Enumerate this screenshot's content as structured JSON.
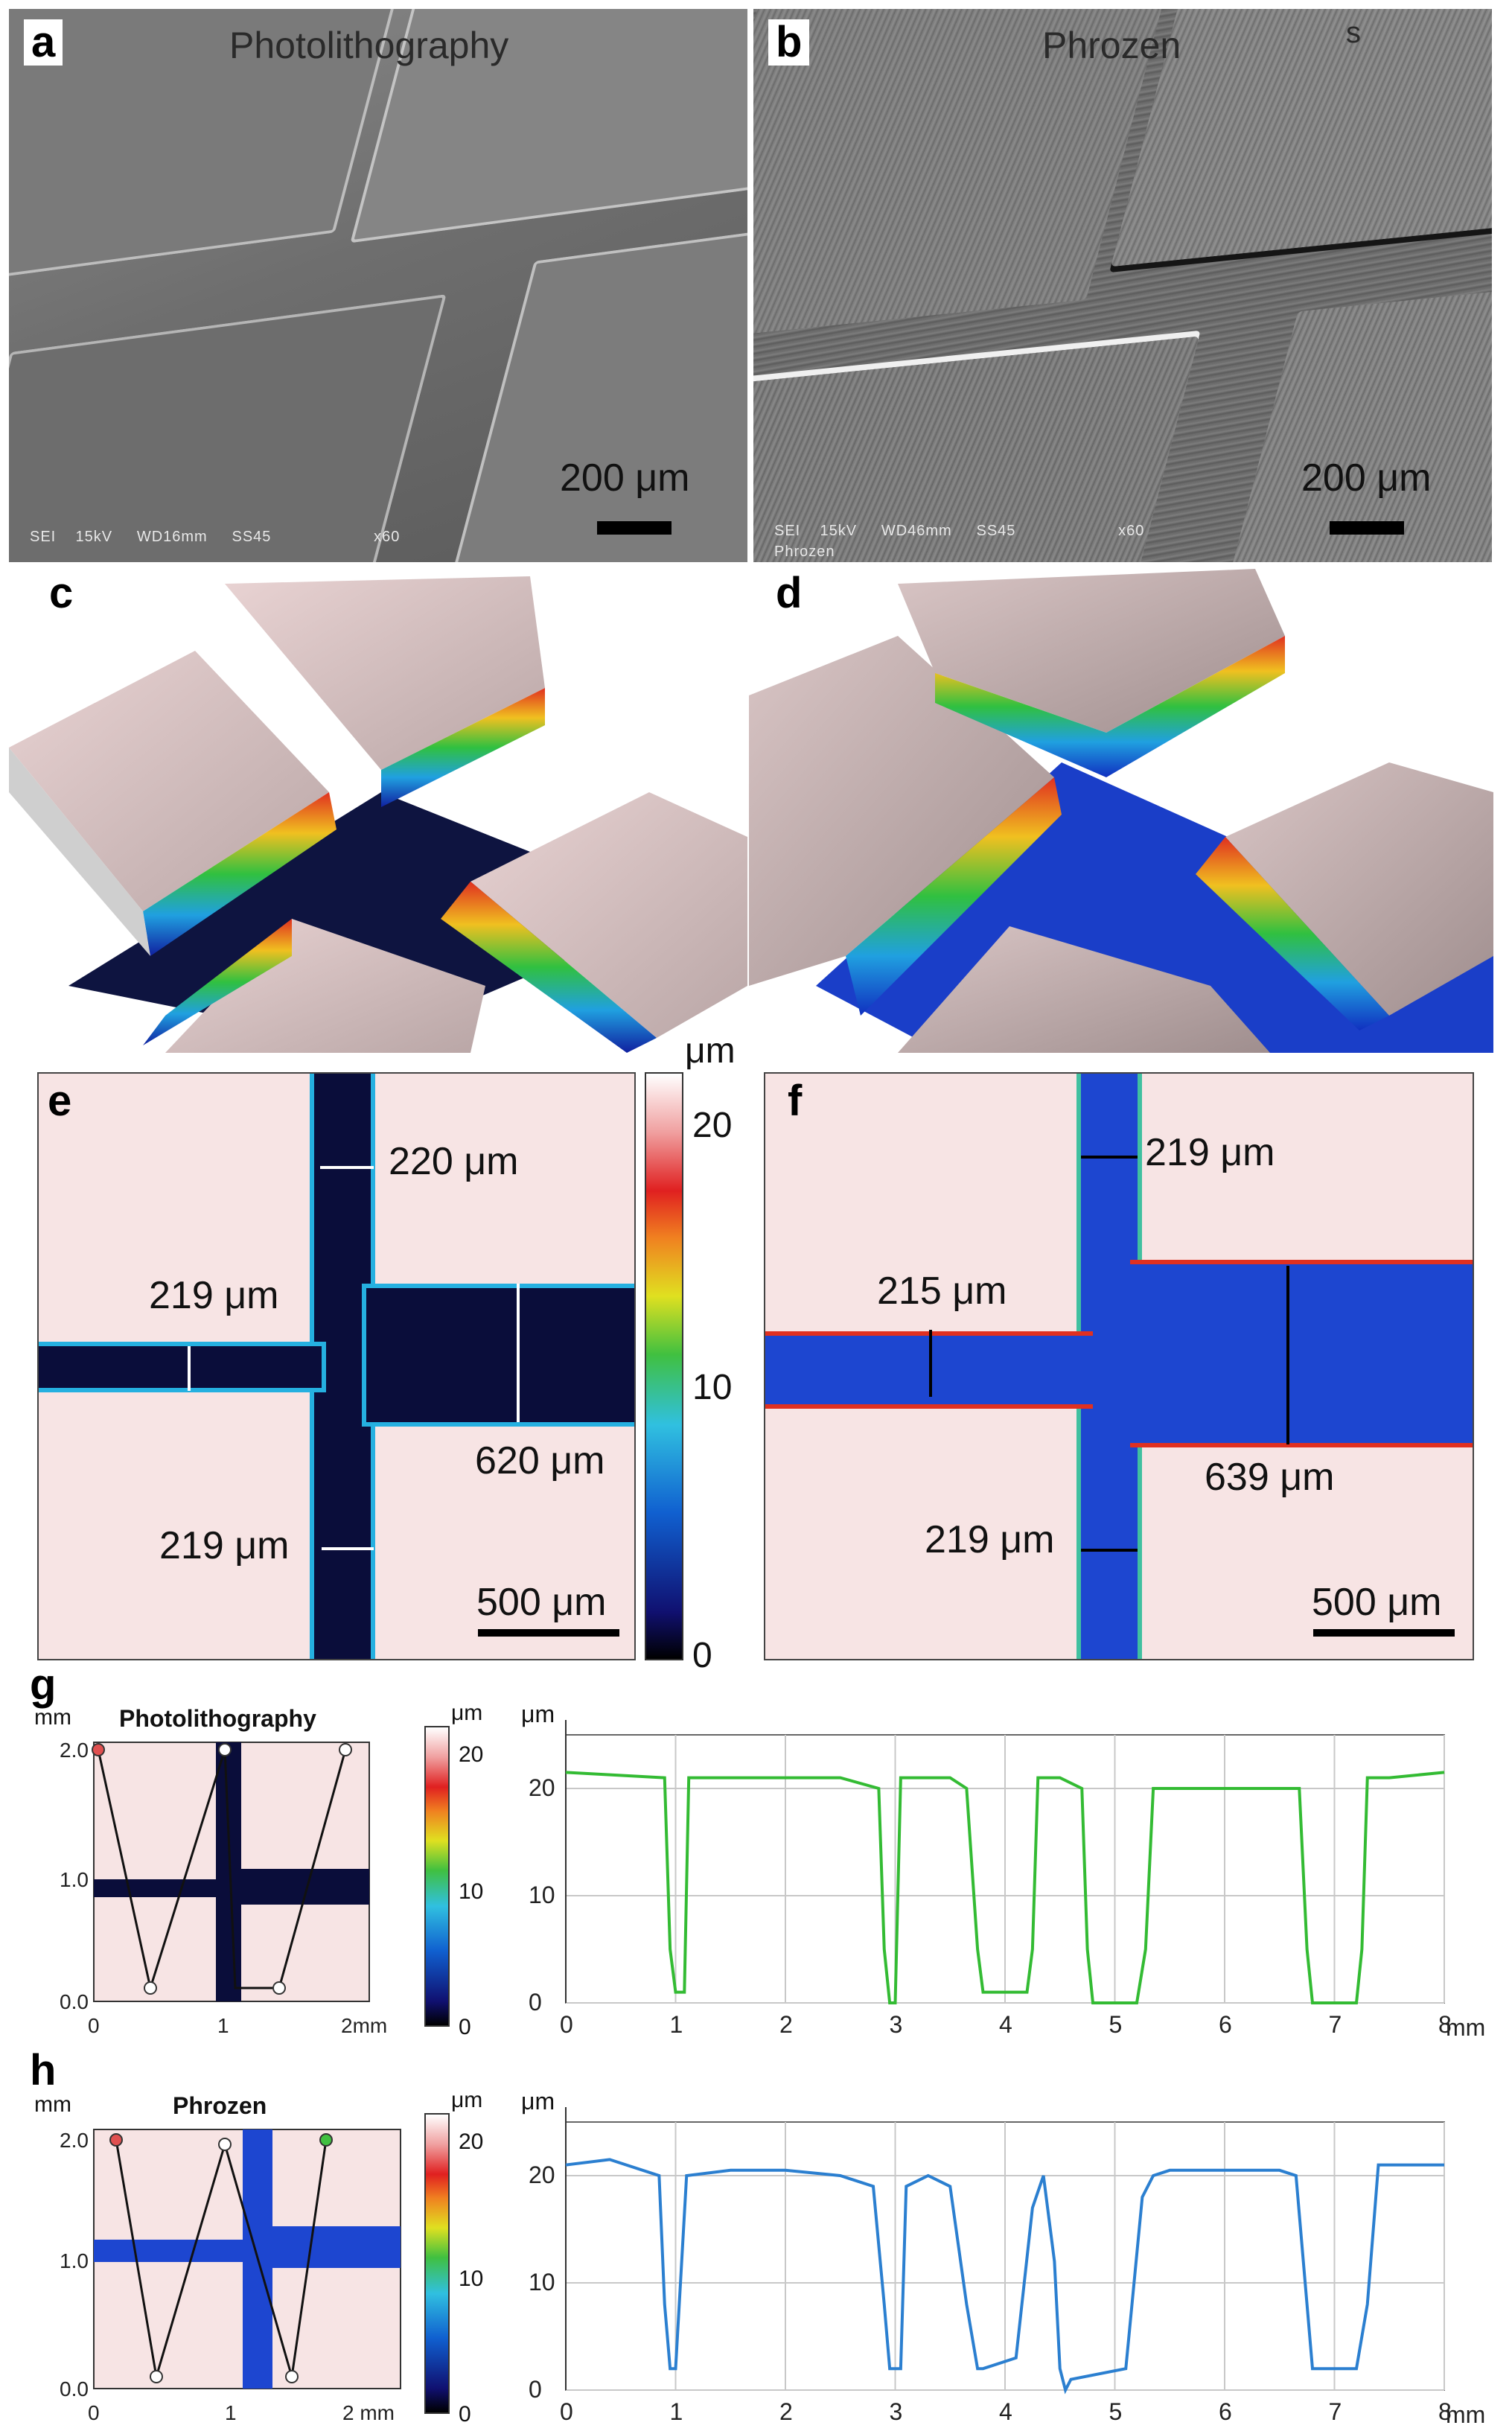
{
  "panel_a": {
    "letter": "a",
    "title": "Photolithography",
    "footer": "SEI    15kV     WD16mm     SS45                     x60",
    "scale": "200 μm"
  },
  "panel_b": {
    "letter": "b",
    "title": "Phrozen",
    "mark": "s",
    "footer": "SEI    15kV     WD46mm     SS45                     x60",
    "footer2": "Phrozen",
    "scale": "200 μm"
  },
  "panel_c": {
    "letter": "c"
  },
  "panel_d": {
    "letter": "d"
  },
  "panel_e": {
    "letter": "e",
    "m1": "220 μm",
    "m2": "219 μm",
    "m3": "620 μm",
    "m4": "219 μm",
    "scale": "500 μm"
  },
  "panel_f": {
    "letter": "f",
    "m1": "219 μm",
    "m2": "215 μm",
    "m3": "639 μm",
    "m4": "219 μm",
    "scale": "500 μm"
  },
  "colorbar_main": {
    "unit": "μm",
    "ticks": [
      "20",
      "10",
      "0"
    ]
  },
  "panel_g": {
    "letter": "g",
    "map_title": "Photolithography",
    "map_unit": "mm",
    "cbar_unit": "μm",
    "cbar_ticks": [
      "20",
      "10",
      "0"
    ],
    "plot_unit": "μm",
    "color": "#33bb33"
  },
  "panel_h": {
    "letter": "h",
    "map_title": "Phrozen",
    "map_unit": "mm",
    "cbar_unit": "μm",
    "cbar_ticks": [
      "20",
      "10",
      "0"
    ],
    "plot_unit": "μm",
    "color": "#2b7fd0"
  },
  "chart_data": [
    {
      "type": "line",
      "title": "",
      "xlabel": "mm",
      "ylabel": "μm",
      "xlim": [
        0,
        8
      ],
      "ylim": [
        0,
        25
      ],
      "x_ticks": [
        "0",
        "1",
        "2",
        "3",
        "4",
        "5",
        "6",
        "7",
        "8"
      ],
      "y_ticks": [
        "0",
        "10",
        "20"
      ],
      "series": [
        {
          "x": [
            0,
            0.9,
            0.95,
            1.0,
            1.08,
            1.12,
            1.5,
            2.0,
            2.5,
            2.85,
            2.9,
            2.95,
            3.0,
            3.05,
            3.2,
            3.5,
            3.65,
            3.75,
            3.8,
            4.2,
            4.25,
            4.3,
            4.45,
            4.5,
            4.7,
            4.75,
            4.8,
            5.2,
            5.28,
            5.35,
            5.5,
            6.0,
            6.5,
            6.68,
            6.75,
            6.8,
            7.2,
            7.25,
            7.3,
            7.5,
            8.0
          ],
          "y": [
            21.5,
            21,
            5,
            1,
            1,
            21,
            21,
            21,
            21,
            20,
            5,
            0,
            0,
            21,
            21,
            21,
            20,
            5,
            1,
            1,
            5,
            21,
            21,
            21,
            20,
            5,
            0,
            0,
            5,
            20,
            20,
            20,
            20,
            20,
            5,
            0,
            0,
            5,
            21,
            21,
            21.5
          ]
        }
      ]
    },
    {
      "type": "line",
      "title": "",
      "xlabel": "mm",
      "ylabel": "μm",
      "xlim": [
        0,
        8
      ],
      "ylim": [
        0,
        25
      ],
      "x_ticks": [
        "0",
        "1",
        "2",
        "3",
        "4",
        "5",
        "6",
        "7",
        "8"
      ],
      "y_ticks": [
        "0",
        "10",
        "20"
      ],
      "series": [
        {
          "x": [
            0,
            0.4,
            0.85,
            0.9,
            0.95,
            1.0,
            1.1,
            1.5,
            2.0,
            2.5,
            2.8,
            2.9,
            2.95,
            3.05,
            3.1,
            3.3,
            3.5,
            3.65,
            3.75,
            3.8,
            4.1,
            4.25,
            4.35,
            4.45,
            4.5,
            4.55,
            4.6,
            5.1,
            5.25,
            5.35,
            5.5,
            6.0,
            6.5,
            6.65,
            6.75,
            6.8,
            7.2,
            7.3,
            7.4,
            7.6,
            8.0
          ],
          "y": [
            21,
            21.5,
            20,
            8,
            2,
            2,
            20,
            20.5,
            20.5,
            20,
            19,
            8,
            2,
            2,
            19,
            20,
            19,
            8,
            2,
            2,
            3,
            17,
            20,
            12,
            2,
            0,
            1,
            2,
            18,
            20,
            20.5,
            20.5,
            20.5,
            20,
            8,
            2,
            2,
            8,
            21,
            21,
            21
          ]
        }
      ]
    }
  ]
}
